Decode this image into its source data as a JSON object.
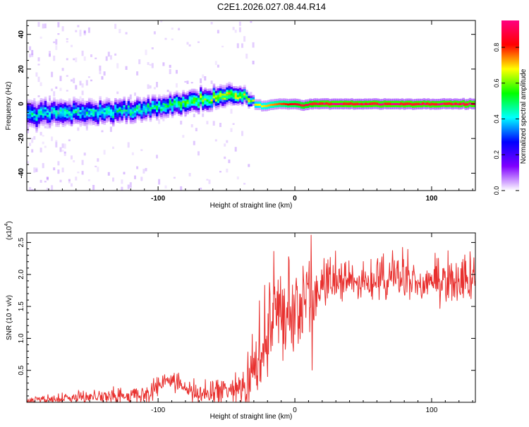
{
  "title": "C2E1.2026.027.08.44.R14",
  "chart_data": [
    {
      "type": "heatmap",
      "xlabel": "Height of straight line (km)",
      "ylabel": "Frequency (Hz)",
      "xlim": [
        -196,
        132
      ],
      "ylim": [
        -50,
        48
      ],
      "xticks": [
        -100,
        0,
        100
      ],
      "yticks": [
        -40,
        -20,
        0,
        20,
        40
      ],
      "colorbar": {
        "label": "Normalized spectral amplitude",
        "range": [
          0,
          0.95
        ],
        "ticks": [
          "0.0",
          "0.2",
          "0.4",
          "0.6",
          "0.8"
        ],
        "colors": [
          "#ffffff",
          "#8000ff",
          "#0000ff",
          "#00ffff",
          "#00ff00",
          "#ffff00",
          "#ff0000",
          "#ff0080"
        ]
      },
      "ridge": {
        "x": [
          -196,
          -170,
          -150,
          -130,
          -110,
          -100,
          -90,
          -80,
          -70,
          -60,
          -55,
          -50,
          -45,
          -40,
          -35,
          -30,
          -25,
          -20,
          -15,
          -10,
          -5,
          0,
          5,
          10,
          20,
          40,
          80,
          132
        ],
        "y": [
          -6,
          -5,
          -5,
          -4,
          -3,
          -2,
          -1,
          1,
          2,
          3,
          4,
          5,
          5,
          5,
          3,
          0,
          -1,
          -1,
          0,
          0,
          0,
          0,
          -1,
          0,
          0,
          0,
          0,
          0
        ]
      },
      "band_halfwidth": {
        "x": [
          -196,
          -100,
          -60,
          -40,
          -30,
          0,
          132
        ],
        "y": [
          6,
          5,
          5,
          4,
          2,
          2,
          2
        ]
      },
      "peak_amplitude": {
        "x": [
          -196,
          -100,
          -50,
          -30,
          0,
          20,
          132
        ],
        "y": [
          0.4,
          0.45,
          0.6,
          0.65,
          0.85,
          0.95,
          0.95
        ]
      }
    },
    {
      "type": "line",
      "xlabel": "Height of straight line (km)",
      "ylabel": "SNR (10 * v/v)",
      "scale_label": "(x10",
      "scale_exp": "4",
      "scale_close": ")",
      "xlim": [
        -196,
        132
      ],
      "ylim": [
        0,
        2.65
      ],
      "xticks": [
        -100,
        0,
        100
      ],
      "yticks": [
        0.5,
        1.0,
        1.5,
        2.0,
        2.5
      ],
      "color": "#e8302e",
      "trend": {
        "x": [
          -196,
          -160,
          -130,
          -105,
          -95,
          -85,
          -75,
          -65,
          -55,
          -45,
          -35,
          -30,
          -25,
          -20,
          -15,
          -10,
          -5,
          0,
          5,
          10,
          15,
          20,
          25,
          30,
          40,
          60,
          80,
          100,
          132
        ],
        "y": [
          0.03,
          0.06,
          0.09,
          0.13,
          0.35,
          0.3,
          0.12,
          0.1,
          0.16,
          0.18,
          0.25,
          0.55,
          0.85,
          1.05,
          1.2,
          1.35,
          1.4,
          1.45,
          1.5,
          1.55,
          1.6,
          1.75,
          1.85,
          1.9,
          1.9,
          1.92,
          1.92,
          1.9,
          1.9
        ]
      },
      "noise": {
        "x": [
          -196,
          -110,
          -60,
          -40,
          -30,
          -10,
          10,
          20,
          132
        ],
        "y": [
          0.03,
          0.08,
          0.1,
          0.18,
          0.35,
          0.4,
          0.45,
          0.2,
          0.2
        ]
      },
      "spikes": [
        {
          "x": 12,
          "y": 2.62
        },
        {
          "x": 12.5,
          "y": 0.5
        }
      ]
    }
  ]
}
